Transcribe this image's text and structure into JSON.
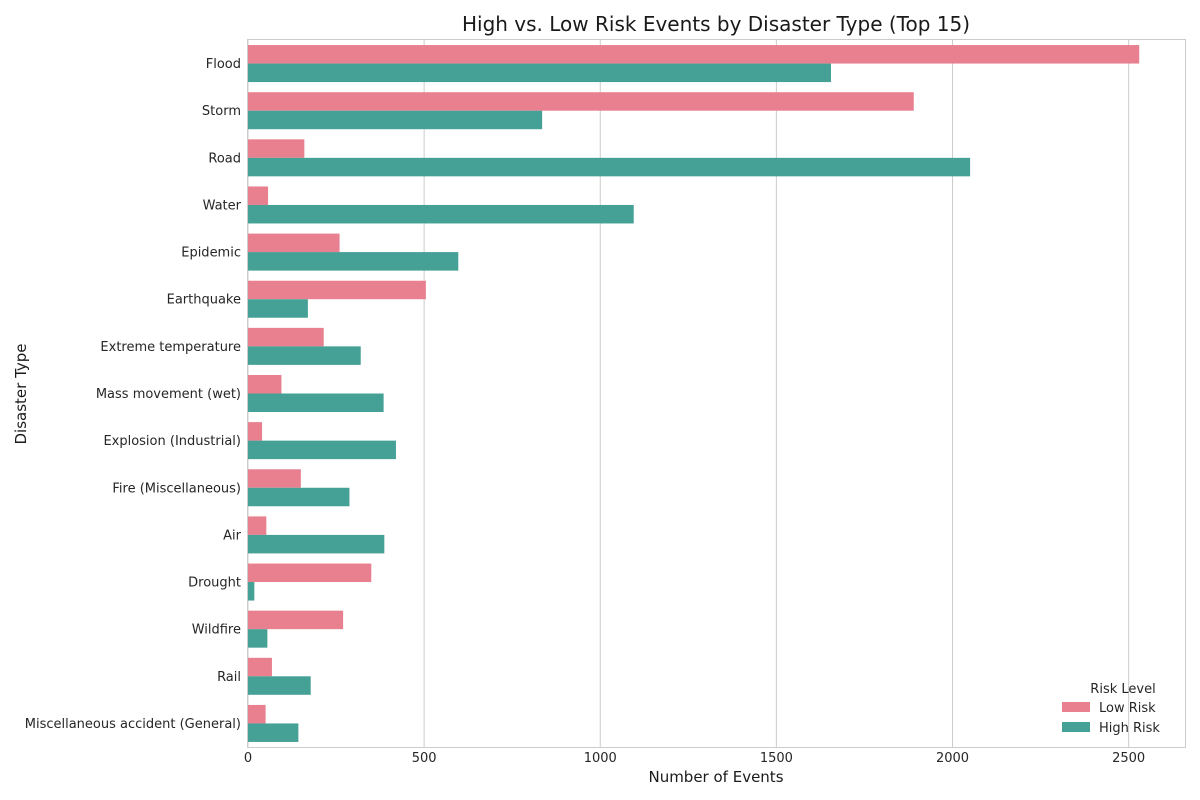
{
  "chart_data": {
    "type": "bar",
    "orientation": "horizontal",
    "title": "High vs. Low Risk Events by Disaster Type (Top 15)",
    "xlabel": "Number of Events",
    "ylabel": "Disaster Type",
    "xlim": [
      0,
      2660
    ],
    "xticks": [
      0,
      500,
      1000,
      1500,
      2000,
      2500
    ],
    "grid": true,
    "legend": {
      "title": "Risk Level",
      "placement": "bottom-right"
    },
    "categories": [
      "Flood",
      "Storm",
      "Road",
      "Water",
      "Epidemic",
      "Earthquake",
      "Extreme temperature",
      "Mass movement (wet)",
      "Explosion (Industrial)",
      "Fire (Miscellaneous)",
      "Air",
      "Drought",
      "Wildfire",
      "Rail",
      "Miscellaneous accident (General)"
    ],
    "series": [
      {
        "name": "Low Risk",
        "color": "#e8808f",
        "values": [
          2530,
          1890,
          160,
          57,
          260,
          505,
          215,
          95,
          40,
          150,
          52,
          350,
          270,
          68,
          50
        ]
      },
      {
        "name": "High Risk",
        "color": "#45a096",
        "values": [
          1655,
          835,
          2050,
          1095,
          597,
          170,
          320,
          385,
          420,
          288,
          387,
          18,
          55,
          178,
          143
        ]
      }
    ]
  }
}
